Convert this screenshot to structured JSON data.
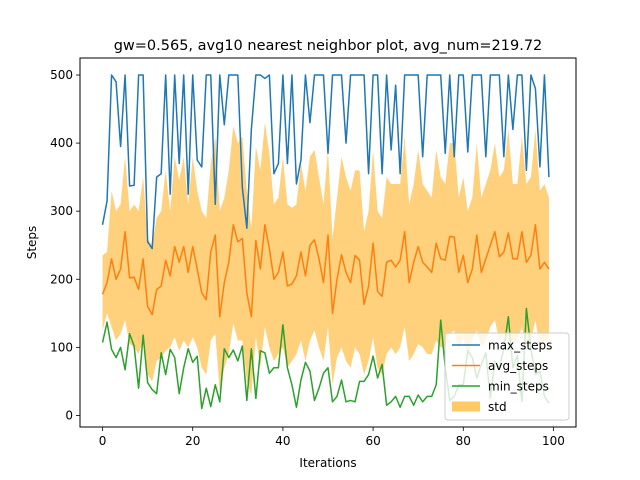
{
  "chart_data": {
    "type": "line",
    "title": "gw=0.565, avg10 nearest neighbor plot, avg_num=219.72",
    "xlabel": "Iterations",
    "ylabel": "Steps",
    "xlim": [
      -5,
      105
    ],
    "ylim": [
      -17,
      525
    ],
    "xticks": [
      0,
      20,
      40,
      60,
      80,
      100
    ],
    "yticks": [
      0,
      100,
      200,
      300,
      400,
      500
    ],
    "x": [
      0,
      1,
      2,
      3,
      4,
      5,
      6,
      7,
      8,
      9,
      10,
      11,
      12,
      13,
      14,
      15,
      16,
      17,
      18,
      19,
      20,
      21,
      22,
      23,
      24,
      25,
      26,
      27,
      28,
      29,
      30,
      31,
      32,
      33,
      34,
      35,
      36,
      37,
      38,
      39,
      40,
      41,
      42,
      43,
      44,
      45,
      46,
      47,
      48,
      49,
      50,
      51,
      52,
      53,
      54,
      55,
      56,
      57,
      58,
      59,
      60,
      61,
      62,
      63,
      64,
      65,
      66,
      67,
      68,
      69,
      70,
      71,
      72,
      73,
      74,
      75,
      76,
      77,
      78,
      79,
      80,
      81,
      82,
      83,
      84,
      85,
      86,
      87,
      88,
      89,
      90,
      91,
      92,
      93,
      94,
      95,
      96,
      97,
      98,
      99
    ],
    "legend_position": "lower right",
    "series": [
      {
        "name": "max_steps",
        "color": "#1f77b4",
        "values": [
          280,
          315,
          500,
          490,
          395,
          500,
          337,
          338,
          500,
          500,
          255,
          245,
          350,
          355,
          500,
          325,
          500,
          370,
          500,
          325,
          500,
          375,
          365,
          500,
          500,
          310,
          500,
          427,
          500,
          500,
          500,
          335,
          275,
          420,
          500,
          500,
          495,
          500,
          355,
          370,
          500,
          370,
          500,
          340,
          375,
          500,
          430,
          500,
          500,
          500,
          385,
          500,
          500,
          500,
          400,
          500,
          500,
          500,
          500,
          355,
          500,
          500,
          355,
          500,
          390,
          485,
          355,
          500,
          500,
          500,
          500,
          380,
          500,
          500,
          500,
          500,
          385,
          500,
          380,
          500,
          500,
          387,
          500,
          500,
          500,
          380,
          500,
          500,
          500,
          380,
          500,
          420,
          500,
          500,
          360,
          500,
          480,
          365,
          500,
          350
        ]
      },
      {
        "name": "avg_steps",
        "color": "#ff7f0e",
        "values": [
          178,
          195,
          230,
          200,
          215,
          270,
          202,
          203,
          185,
          230,
          160,
          148,
          185,
          190,
          228,
          205,
          248,
          225,
          248,
          210,
          248,
          215,
          180,
          170,
          240,
          265,
          145,
          195,
          225,
          280,
          255,
          260,
          180,
          145,
          257,
          215,
          280,
          245,
          200,
          210,
          240,
          190,
          193,
          205,
          240,
          205,
          250,
          258,
          230,
          195,
          265,
          150,
          200,
          236,
          210,
          195,
          235,
          228,
          163,
          190,
          253,
          182,
          175,
          225,
          228,
          218,
          228,
          270,
          195,
          225,
          248,
          225,
          218,
          210,
          253,
          230,
          228,
          263,
          262,
          210,
          235,
          195,
          215,
          265,
          210,
          230,
          250,
          270,
          233,
          240,
          268,
          230,
          230,
          270,
          225,
          235,
          280,
          215,
          225,
          215
        ]
      },
      {
        "name": "min_steps",
        "color": "#2ca02c",
        "values": [
          107,
          137,
          97,
          85,
          100,
          67,
          120,
          102,
          40,
          118,
          48,
          38,
          32,
          92,
          60,
          97,
          85,
          32,
          70,
          98,
          78,
          87,
          10,
          40,
          13,
          45,
          20,
          98,
          85,
          96,
          80,
          102,
          22,
          98,
          25,
          95,
          92,
          62,
          70,
          70,
          133,
          70,
          45,
          12,
          52,
          78,
          65,
          22,
          40,
          62,
          70,
          20,
          28,
          52,
          20,
          22,
          20,
          50,
          50,
          60,
          87,
          55,
          75,
          15,
          20,
          28,
          12,
          28,
          28,
          15,
          30,
          20,
          28,
          28,
          45,
          140,
          70,
          22,
          28,
          45,
          45,
          95,
          85,
          55,
          75,
          92,
          25,
          80,
          70,
          98,
          145,
          70,
          88,
          20,
          157,
          98,
          60,
          65,
          28,
          18
        ]
      },
      {
        "name": "std",
        "color": "#ffc966",
        "type": "band",
        "upper": [
          235,
          240,
          330,
          300,
          310,
          380,
          300,
          310,
          300,
          350,
          260,
          250,
          290,
          300,
          360,
          300,
          380,
          345,
          380,
          310,
          380,
          330,
          300,
          290,
          370,
          410,
          300,
          320,
          360,
          425,
          400,
          410,
          330,
          275,
          395,
          360,
          430,
          385,
          310,
          320,
          380,
          310,
          305,
          310,
          370,
          330,
          380,
          390,
          350,
          310,
          390,
          260,
          320,
          380,
          350,
          330,
          360,
          360,
          270,
          300,
          390,
          300,
          290,
          350,
          340,
          340,
          340,
          410,
          310,
          340,
          390,
          340,
          330,
          320,
          390,
          350,
          340,
          400,
          400,
          320,
          350,
          300,
          320,
          400,
          320,
          340,
          360,
          400,
          350,
          360,
          420,
          340,
          340,
          410,
          340,
          350,
          420,
          330,
          340,
          320
        ],
        "lower": [
          125,
          150,
          130,
          110,
          120,
          140,
          105,
          100,
          90,
          110,
          60,
          50,
          80,
          85,
          95,
          100,
          115,
          95,
          110,
          100,
          115,
          100,
          70,
          60,
          110,
          120,
          35,
          70,
          90,
          135,
          110,
          110,
          50,
          30,
          115,
          70,
          130,
          100,
          80,
          90,
          100,
          70,
          80,
          90,
          110,
          80,
          110,
          125,
          100,
          80,
          130,
          45,
          85,
          100,
          80,
          70,
          100,
          90,
          60,
          80,
          115,
          70,
          60,
          90,
          100,
          90,
          100,
          130,
          80,
          90,
          105,
          100,
          90,
          90,
          110,
          100,
          100,
          120,
          125,
          95,
          115,
          85,
          110,
          125,
          100,
          110,
          130,
          140,
          110,
          120,
          110,
          110,
          110,
          130,
          100,
          110,
          140,
          100,
          110,
          110
        ]
      }
    ]
  }
}
